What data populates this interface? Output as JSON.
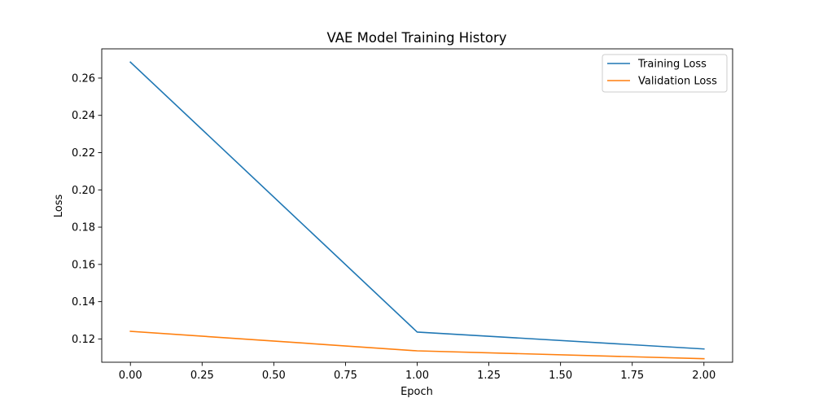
{
  "chart_data": {
    "type": "line",
    "title": "VAE Model Training History",
    "xlabel": "Epoch",
    "ylabel": "Loss",
    "x": [
      0,
      1,
      2
    ],
    "xlim": [
      -0.1,
      2.1
    ],
    "ylim": [
      0.1075,
      0.2757
    ],
    "xticks": [
      0.0,
      0.25,
      0.5,
      0.75,
      1.0,
      1.25,
      1.5,
      1.75,
      2.0
    ],
    "xtick_labels": [
      "0.00",
      "0.25",
      "0.50",
      "0.75",
      "1.00",
      "1.25",
      "1.50",
      "1.75",
      "2.00"
    ],
    "yticks": [
      0.12,
      0.14,
      0.16,
      0.18,
      0.2,
      0.22,
      0.24,
      0.26
    ],
    "ytick_labels": [
      "0.12",
      "0.14",
      "0.16",
      "0.18",
      "0.20",
      "0.22",
      "0.24",
      "0.26"
    ],
    "grid": false,
    "legend_position": "top-right",
    "series": [
      {
        "name": "Training Loss",
        "values": [
          0.2686,
          0.1237,
          0.1146
        ],
        "color": "#1f77b4"
      },
      {
        "name": "Validation Loss",
        "values": [
          0.1241,
          0.1136,
          0.1094
        ],
        "color": "#ff7f0e"
      }
    ]
  }
}
